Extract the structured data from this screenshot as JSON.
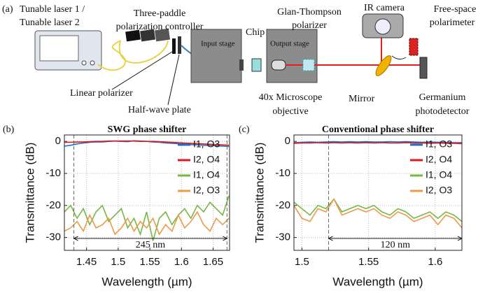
{
  "diagram": {
    "panel": "(a)",
    "laser": [
      "Tunable laser 1 /",
      "Tunable laser 2"
    ],
    "controller": [
      "Three-paddle",
      "polarization controller"
    ],
    "linear_polarizer": "Linear polarizer",
    "half_wave_plate": "Half-wave plate",
    "input_stage": "Input stage",
    "chip": "Chip",
    "output_stage": "Output stage",
    "glan": [
      "Glan-Thompson",
      "polarizer"
    ],
    "objective": [
      "40x Microscope",
      "objective"
    ],
    "camera": "IR camera",
    "polarimeter": [
      "Free-space",
      "polarimeter"
    ],
    "mirror": "Mirror",
    "detector": [
      "Germanium",
      "photodetector"
    ]
  },
  "chart_data": [
    {
      "type": "line",
      "panel": "(b)",
      "title": "SWG phase shifter",
      "xlabel": "Wavelength (µm)",
      "ylabel": "Transmittance (dB)",
      "x": [
        1.415,
        1.425,
        1.435,
        1.445,
        1.455,
        1.465,
        1.475,
        1.485,
        1.495,
        1.505,
        1.515,
        1.525,
        1.535,
        1.545,
        1.555,
        1.565,
        1.575,
        1.585,
        1.595,
        1.605,
        1.615,
        1.625,
        1.635,
        1.645,
        1.655,
        1.665,
        1.675
      ],
      "series": [
        {
          "name": "I1, O3",
          "color": "#1f6fc0",
          "values": [
            -1.5,
            -1.2,
            -0.8,
            -0.5,
            -0.3,
            -0.2,
            -0.2,
            0,
            0.1,
            0,
            -0.1,
            0.2,
            0.1,
            0,
            -0.2,
            -0.3,
            -0.5,
            -0.6,
            -0.7,
            -0.8,
            -1.0,
            -1.1,
            -1.2,
            -1.3,
            -1.4,
            -1.5,
            -1.6
          ]
        },
        {
          "name": "I2, O4",
          "color": "#e8141c",
          "values": [
            -0.3,
            -0.3,
            -0.2,
            -0.2,
            -0.1,
            0,
            0,
            0.1,
            0.1,
            0.1,
            0.1,
            0.1,
            0,
            0,
            0,
            -0.1,
            -0.2,
            -0.3,
            -0.4,
            -0.5,
            -0.6,
            -0.7,
            -0.8,
            -0.9,
            -1.0,
            -1.1,
            -1.2
          ]
        },
        {
          "name": "I1, O4",
          "color": "#77b744",
          "values": [
            -22,
            -20,
            -24,
            -21,
            -26,
            -22,
            -20,
            -25,
            -23,
            -21,
            -27,
            -24,
            -29,
            -22,
            -31,
            -24,
            -22,
            -26,
            -23,
            -21,
            -24,
            -20,
            -22,
            -19,
            -21,
            -23,
            -17
          ]
        },
        {
          "name": "I2, O3",
          "color": "#eb9a4a",
          "values": [
            -28,
            -27,
            -25,
            -28,
            -23,
            -27,
            -26,
            -24,
            -29,
            -27,
            -24,
            -28,
            -25,
            -27,
            -24,
            -29,
            -26,
            -28,
            -23,
            -27,
            -25,
            -22,
            -26,
            -28,
            -24,
            -26,
            -24
          ]
        }
      ],
      "xlim": [
        1.415,
        1.676
      ],
      "xticks": [
        1.45,
        1.5,
        1.55,
        1.6,
        1.65
      ],
      "ylim": [
        -34,
        2
      ],
      "yticks": [
        -30,
        -20,
        -10,
        0
      ],
      "grid": true,
      "vlines": [
        1.43,
        1.672
      ],
      "annotation": "245 nm",
      "legend": "upper right"
    },
    {
      "type": "line",
      "panel": "(c)",
      "title": "Conventional phase shifter",
      "xlabel": "Wavelength (µm)",
      "ylabel": "Transmittance (dB)",
      "x": [
        1.494,
        1.5,
        1.506,
        1.512,
        1.518,
        1.524,
        1.53,
        1.536,
        1.542,
        1.548,
        1.554,
        1.56,
        1.566,
        1.572,
        1.578,
        1.584,
        1.59,
        1.596,
        1.602,
        1.608,
        1.614,
        1.62
      ],
      "series": [
        {
          "name": "I1, O3",
          "color": "#1f6fc0",
          "values": [
            -0.4,
            -0.3,
            -0.2,
            -0.3,
            -0.2,
            -0.1,
            -0.2,
            -0.1,
            -0.2,
            -0.1,
            -0.2,
            -0.2,
            -0.1,
            -0.2,
            -0.1,
            -0.2,
            -0.3,
            -0.2,
            -0.3,
            -0.3,
            -0.4,
            -0.4
          ]
        },
        {
          "name": "I2, O4",
          "color": "#e8141c",
          "values": [
            -0.6,
            -0.5,
            -0.5,
            -0.4,
            -0.5,
            -0.4,
            -0.5,
            -0.4,
            -0.5,
            -0.4,
            -0.5,
            -0.4,
            -0.5,
            -0.5,
            -0.4,
            -0.5,
            -0.5,
            -0.6,
            -0.5,
            -0.6,
            -0.6,
            -0.7
          ]
        },
        {
          "name": "I1, O4",
          "color": "#77b744",
          "values": [
            -19,
            -21,
            -23,
            -20,
            -21,
            -18,
            -22,
            -21,
            -20,
            -21,
            -20,
            -22,
            -23,
            -21,
            -22,
            -24,
            -23,
            -22,
            -24,
            -22,
            -23,
            -25
          ]
        },
        {
          "name": "I2, O3",
          "color": "#eb9a4a",
          "values": [
            -20,
            -24,
            -25,
            -21,
            -22,
            -18,
            -23,
            -22,
            -21,
            -22,
            -21,
            -23,
            -24,
            -22,
            -23,
            -25,
            -24,
            -23,
            -26,
            -23,
            -24,
            -27
          ]
        }
      ],
      "xlim": [
        1.494,
        1.62
      ],
      "xticks": [
        1.5,
        1.55,
        1.6
      ],
      "ylim": [
        -34,
        2
      ],
      "yticks": [
        -30,
        -20,
        -10,
        0
      ],
      "grid": true,
      "vlines": [
        1.52
      ],
      "annotation": "120 nm",
      "legend": "upper right"
    }
  ]
}
